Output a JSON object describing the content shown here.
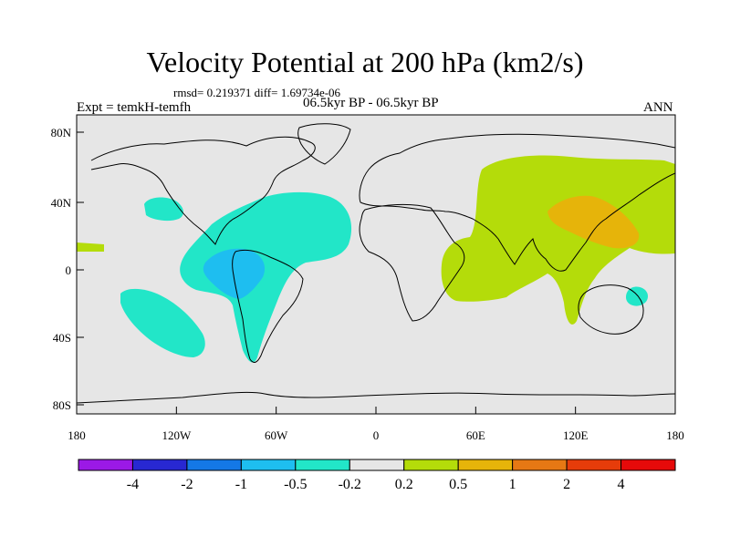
{
  "title": "Velocity Potential at 200 hPa (km2/s)",
  "stats_line": "rmsd= 0.219371 diff= 1.69734e-06",
  "experiment": "Expt = temkH-temfh",
  "period": "06.5kyr BP - 06.5kyr BP",
  "season": "ANN",
  "map": {
    "ocean_color": "#e6e6e6",
    "lat_ticks": [
      "80N",
      "40N",
      "0",
      "40S",
      "80S"
    ],
    "lon_ticks": [
      "180",
      "120W",
      "60W",
      "0",
      "60E",
      "120E",
      "180"
    ]
  },
  "colorbar": {
    "colors": [
      "#9b19e6",
      "#2828d2",
      "#1478e6",
      "#1ebef0",
      "#22e6c8",
      "#e6e6e6",
      "#b4dc0a",
      "#e6b40a",
      "#e67814",
      "#e63c0a",
      "#e60a0a"
    ],
    "labels": [
      "-4",
      "-2",
      "-1",
      "-0.5",
      "-0.2",
      "0.2",
      "0.5",
      "1",
      "2",
      "4"
    ]
  },
  "regions": [
    {
      "name": "positive-anomaly-asia-indian-ocean",
      "level": "0.2 to 0.5",
      "color": "#b4dc0a"
    },
    {
      "name": "positive-anomaly-east-asia-core",
      "level": "0.5 to 1",
      "color": "#e6b40a"
    },
    {
      "name": "negative-anomaly-atlantic-americas",
      "level": "-0.5 to -0.2",
      "color": "#22e6c8"
    },
    {
      "name": "negative-anomaly-south-america-core",
      "level": "-1 to -0.5",
      "color": "#1ebef0"
    },
    {
      "name": "negative-anomaly-north-pacific",
      "level": "-0.5 to -0.2",
      "color": "#22e6c8"
    },
    {
      "name": "negative-anomaly-south-pacific",
      "level": "-0.5 to -0.2",
      "color": "#22e6c8"
    },
    {
      "name": "negative-anomaly-coral-sea",
      "level": "-0.5 to -0.2",
      "color": "#22e6c8"
    }
  ]
}
